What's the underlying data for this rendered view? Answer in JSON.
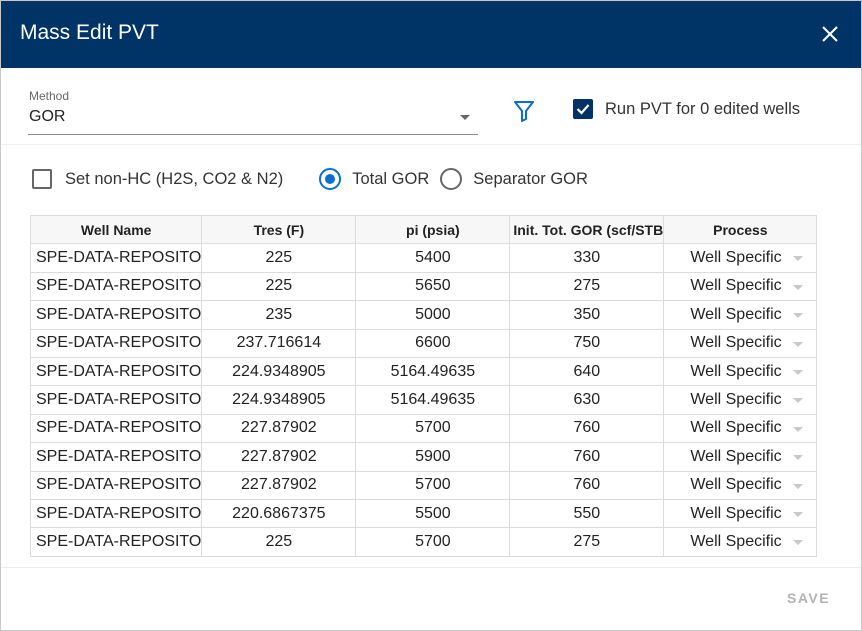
{
  "dialog": {
    "title": "Mass Edit PVT",
    "close_icon": "close-icon"
  },
  "method": {
    "label": "Method",
    "value": "GOR"
  },
  "filter_icon": "filter-icon",
  "run_pvt": {
    "label": "Run PVT for 0 edited wells",
    "checked": true
  },
  "options": {
    "non_hc_label": "Set non-HC (H2S, CO2 & N2)",
    "non_hc_checked": false,
    "total_gor_label": "Total GOR",
    "separator_gor_label": "Separator GOR",
    "selected": "Total GOR"
  },
  "table": {
    "headers": {
      "well": "Well Name",
      "tres": "Tres (F)",
      "pi": "pi (psia)",
      "gor": "Init. Tot. GOR (scf/STB",
      "process": "Process"
    },
    "rows": [
      {
        "well": "SPE-DATA-REPOSITO",
        "tres": "225",
        "pi": "5400",
        "gor": "330",
        "process": "Well Specific"
      },
      {
        "well": "SPE-DATA-REPOSITO",
        "tres": "225",
        "pi": "5650",
        "gor": "275",
        "process": "Well Specific"
      },
      {
        "well": "SPE-DATA-REPOSITO",
        "tres": "235",
        "pi": "5000",
        "gor": "350",
        "process": "Well Specific"
      },
      {
        "well": "SPE-DATA-REPOSITO",
        "tres": "237.716614",
        "pi": "6600",
        "gor": "750",
        "process": "Well Specific"
      },
      {
        "well": "SPE-DATA-REPOSITO",
        "tres": "224.9348905",
        "pi": "5164.49635",
        "gor": "640",
        "process": "Well Specific"
      },
      {
        "well": "SPE-DATA-REPOSITO",
        "tres": "224.9348905",
        "pi": "5164.49635",
        "gor": "630",
        "process": "Well Specific"
      },
      {
        "well": "SPE-DATA-REPOSITO",
        "tres": "227.87902",
        "pi": "5700",
        "gor": "760",
        "process": "Well Specific"
      },
      {
        "well": "SPE-DATA-REPOSITO",
        "tres": "227.87902",
        "pi": "5900",
        "gor": "760",
        "process": "Well Specific"
      },
      {
        "well": "SPE-DATA-REPOSITO",
        "tres": "227.87902",
        "pi": "5700",
        "gor": "760",
        "process": "Well Specific"
      },
      {
        "well": "SPE-DATA-REPOSITO",
        "tres": "220.6867375",
        "pi": "5500",
        "gor": "550",
        "process": "Well Specific"
      },
      {
        "well": "SPE-DATA-REPOSITO",
        "tres": "225",
        "pi": "5700",
        "gor": "275",
        "process": "Well Specific"
      }
    ]
  },
  "footer": {
    "save_label": "SAVE"
  },
  "colors": {
    "header_bg": "#003366",
    "accent": "#0a6fd1",
    "checkbox_checked": "#003366",
    "disabled_text": "#b3b3b3"
  }
}
